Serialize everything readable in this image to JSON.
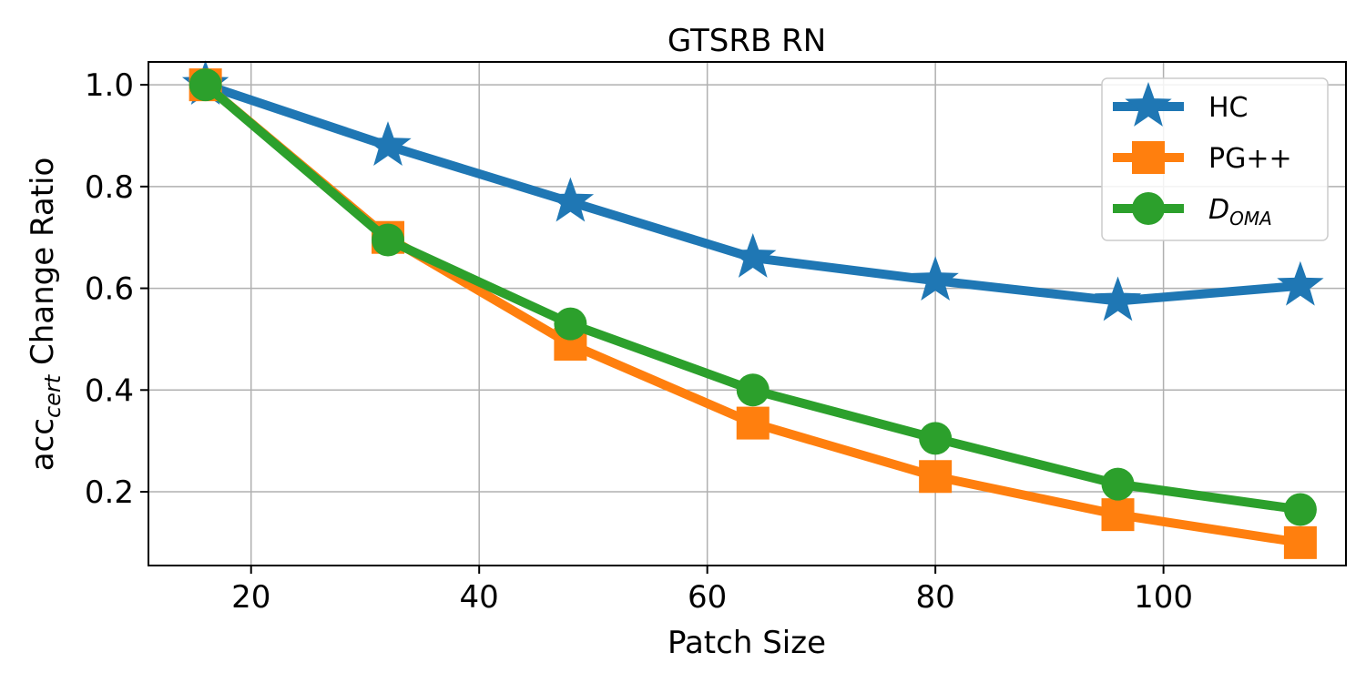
{
  "chart_data": {
    "type": "line",
    "title": "GTSRB RN",
    "xlabel": "Patch Size",
    "ylabel_main": "acc",
    "ylabel_sub": "cert",
    "ylabel_rest": " Change Ratio",
    "xlim": [
      11,
      116
    ],
    "ylim": [
      0.055,
      1.045
    ],
    "x_ticks": [
      20,
      40,
      60,
      80,
      100
    ],
    "y_ticks": [
      0.2,
      0.4,
      0.6,
      0.8,
      1.0
    ],
    "x_tick_labels": [
      "20",
      "40",
      "60",
      "80",
      "100"
    ],
    "y_tick_labels": [
      "0.2",
      "0.4",
      "0.6",
      "0.8",
      "1.0"
    ],
    "grid": true,
    "legend_position": "top-right",
    "x": [
      16,
      32,
      48,
      64,
      80,
      96,
      112
    ],
    "series": [
      {
        "name": "HC",
        "name_main": "HC",
        "name_sub": "",
        "marker": "star",
        "color": "#1f77b4",
        "values": [
          1.0,
          0.88,
          0.77,
          0.66,
          0.615,
          0.575,
          0.605
        ]
      },
      {
        "name": "PG++",
        "name_main": "PG++",
        "name_sub": "",
        "marker": "square",
        "color": "#ff7f0e",
        "values": [
          1.0,
          0.7,
          0.49,
          0.335,
          0.23,
          0.155,
          0.1
        ]
      },
      {
        "name": "DOMA",
        "name_main": "D",
        "name_sub": "OMA",
        "marker": "circle",
        "color": "#2ca02c",
        "values": [
          1.0,
          0.695,
          0.53,
          0.4,
          0.305,
          0.215,
          0.165
        ]
      }
    ]
  }
}
